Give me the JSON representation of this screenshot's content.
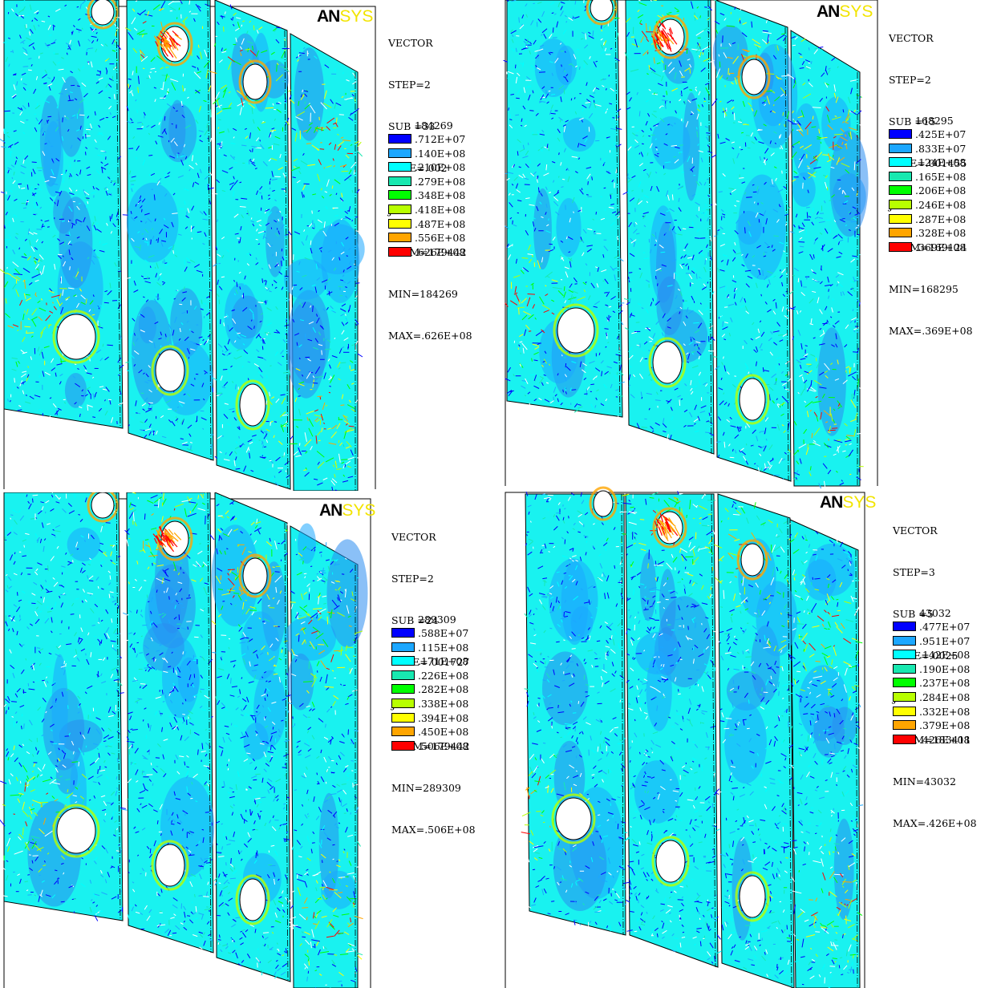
{
  "colors": {
    "levels": [
      "#0000ff",
      "#1ca7ff",
      "#00ffff",
      "#18e8b0",
      "#00ff00",
      "#b8ff00",
      "#ffff00",
      "#ffa500",
      "#ff0000"
    ],
    "logo_an": "#000000",
    "logo_sys": "#f2e400",
    "plate_fill": "#19f2f0"
  },
  "panels": [
    {
      "logo": {
        "an": "AN",
        "sys": "SYS"
      },
      "info": [
        "VECTOR",
        "STEP=2",
        "SUB =33",
        "TIME=.002",
        "JT",
        "ELEM=179442",
        "MIN=184269",
        "MAX=.626E+08"
      ],
      "legend_min": "184269",
      "legend_values": [
        ".712E+07",
        ".140E+08",
        ".210E+08",
        ".279E+08",
        ".348E+08",
        ".418E+08",
        ".487E+08",
        ".556E+08",
        ".626E+08"
      ]
    },
    {
      "logo": {
        "an": "AN",
        "sys": "SYS"
      },
      "info": [
        "VECTOR",
        "STEP=2",
        "SUB =15",
        "TIME=.001455",
        "JT",
        "ELEM=169124",
        "MIN=168295",
        "MAX=.369E+08"
      ],
      "legend_min": "168295",
      "legend_values": [
        ".425E+07",
        ".833E+07",
        ".124E+08",
        ".165E+08",
        ".206E+08",
        ".246E+08",
        ".287E+08",
        ".328E+08",
        ".369E+08"
      ]
    },
    {
      "logo": {
        "an": "AN",
        "sys": "SYS"
      },
      "info": [
        "VECTOR",
        "STEP=2",
        "SUB =24",
        "TIME=.001727",
        "JT",
        "ELEM=179442",
        "MIN=289309",
        "MAX=.506E+08"
      ],
      "legend_min": "289309",
      "legend_values": [
        ".588E+07",
        ".115E+08",
        ".171E+08",
        ".226E+08",
        ".282E+08",
        ".338E+08",
        ".394E+08",
        ".450E+08",
        ".506E+08"
      ]
    },
    {
      "logo": {
        "an": "AN",
        "sys": "SYS"
      },
      "info": [
        "VECTOR",
        "STEP=3",
        "SUB =5",
        "TIME=.0025",
        "JT",
        "ELEM=183411",
        "MIN=43032",
        "MAX=.426E+08"
      ],
      "legend_min": "43032",
      "legend_values": [
        ".477E+07",
        ".951E+07",
        ".142E+08",
        ".190E+08",
        ".237E+08",
        ".284E+08",
        ".332E+08",
        ".379E+08",
        ".426E+08"
      ]
    }
  ]
}
